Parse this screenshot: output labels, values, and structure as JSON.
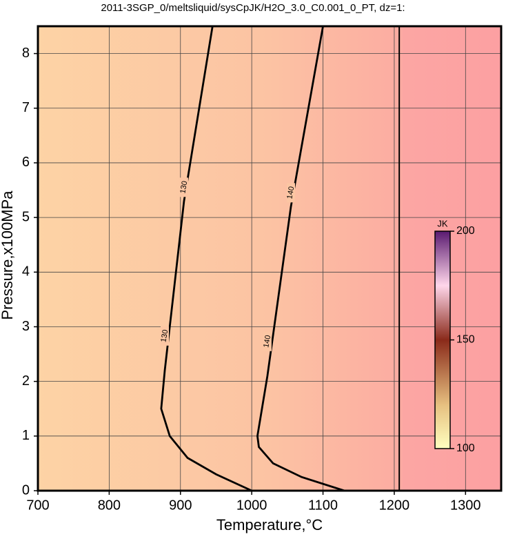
{
  "chart_data": {
    "type": "contour",
    "title": "2011-3SGP_0/meltsliquid/sysCpJK/H2O_3.0_C0.001_0_PT, dz=1:",
    "x_label": "Temperature,°C",
    "y_label": "Pressure,x100MPa",
    "xlim": [
      700,
      1350
    ],
    "ylim": [
      0,
      8.5
    ],
    "xticks": [
      700,
      800,
      900,
      1000,
      1100,
      1200,
      1300
    ],
    "yticks": [
      0,
      1,
      2,
      3,
      4,
      5,
      6,
      7,
      8
    ],
    "grid": true,
    "series": [
      {
        "level": 130,
        "color": "#000000",
        "x": [
          945,
          905,
          878,
          873,
          885,
          910,
          950,
          1000
        ],
        "y": [
          8.5,
          5.3,
          2.2,
          1.5,
          1.0,
          0.6,
          0.3,
          0
        ]
      },
      {
        "level": 140,
        "color": "#000000",
        "x": [
          1100,
          1055,
          1022,
          1008,
          1010,
          1030,
          1070,
          1130
        ],
        "y": [
          8.5,
          5.2,
          2.1,
          1.0,
          0.8,
          0.5,
          0.25,
          0
        ]
      },
      {
        "color": "#000000",
        "x": [
          1207,
          1207
        ],
        "y": [
          0,
          8.5
        ]
      }
    ],
    "colorbar": {
      "label": "JK",
      "lim": [
        100,
        200
      ],
      "ticks": [
        100,
        150,
        200
      ]
    }
  }
}
